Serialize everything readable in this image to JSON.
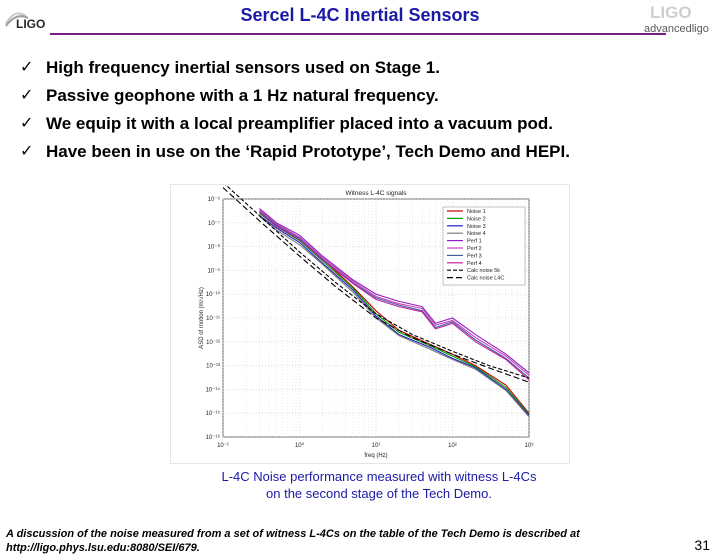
{
  "slide": {
    "title": "Sercel L-4C Inertial Sensors",
    "logo_left_text": "LIGO",
    "logo_right_text_top": "LIGO",
    "logo_right_text_bottom": "advancedligo",
    "bullets": [
      "High frequency inertial sensors used on Stage 1.",
      "Passive geophone with a 1 Hz natural frequency.",
      "We equip it with a local preamplifier placed into a vacuum pod.",
      "Have been in use on the ‘Rapid Prototype’, Tech Demo and HEPI."
    ],
    "bullet_mark": "✓",
    "caption_line1": "L-4C Noise performance measured with witness L-4Cs",
    "caption_line2": "on the second stage of the Tech Demo.",
    "footnote_line1": "A discussion of the noise measured from a set of witness L-4Cs on the table of the Tech Demo is described at",
    "footnote_line2": "http://ligo.phys.lsu.edu:8080/SEI/679.",
    "page_number": "31"
  },
  "chart_data": {
    "type": "line",
    "title": "Witness L-4C signals",
    "xlabel": "freq (Hz)",
    "ylabel": "ASD of motion (m/√Hz)",
    "x_scale": "log",
    "y_scale": "log",
    "xlim": [
      0.1,
      1000
    ],
    "ylim": [
      1e-16,
      1e-06
    ],
    "x_ticks": [
      "10⁻¹",
      "10⁰",
      "10¹",
      "10²",
      "10³"
    ],
    "y_ticks": [
      "10⁻⁶",
      "10⁻⁷",
      "10⁻⁸",
      "10⁻⁹",
      "10⁻¹⁰",
      "10⁻¹¹",
      "10⁻¹²",
      "10⁻¹³",
      "10⁻¹⁴",
      "10⁻¹⁵",
      "10⁻¹⁶"
    ],
    "grid": true,
    "legend_position": "top-right",
    "series": [
      {
        "name": "Noise 1",
        "color": "#c00000",
        "x": [
          0.3,
          0.5,
          1,
          2,
          5,
          10,
          20,
          50,
          100,
          200,
          500,
          1000
        ],
        "y": [
          3e-07,
          8e-08,
          2e-08,
          3e-09,
          2e-10,
          2e-11,
          3e-12,
          8e-13,
          3e-13,
          1e-13,
          1.5e-14,
          1e-15
        ]
      },
      {
        "name": "Noise 2",
        "color": "#00a000",
        "x": [
          0.3,
          0.5,
          1,
          2,
          5,
          10,
          20,
          50,
          100,
          200,
          500,
          1000
        ],
        "y": [
          2.5e-07,
          7e-08,
          1.8e-08,
          2.5e-09,
          1.8e-10,
          1.5e-11,
          2.5e-12,
          7e-13,
          2.5e-13,
          9e-14,
          1.2e-14,
          9e-16
        ]
      },
      {
        "name": "Noise 3",
        "color": "#2020c0",
        "x": [
          0.3,
          0.5,
          1,
          2,
          5,
          10,
          20,
          50,
          100,
          200,
          500,
          1000
        ],
        "y": [
          2e-07,
          6e-08,
          1.5e-08,
          2e-09,
          1.5e-10,
          1.2e-11,
          2e-12,
          6e-13,
          2e-13,
          8e-14,
          1e-14,
          8e-16
        ]
      },
      {
        "name": "Noise 4",
        "color": "#808080",
        "x": [
          0.3,
          0.5,
          1,
          2,
          5,
          10,
          20,
          50,
          100,
          200,
          500,
          1000
        ],
        "y": [
          1.8e-07,
          5e-08,
          1.2e-08,
          1.8e-09,
          1.2e-10,
          1e-11,
          1.8e-12,
          5e-13,
          1.8e-13,
          7e-14,
          9e-15,
          7e-16
        ]
      },
      {
        "name": "Perf 1",
        "color": "#9020c0",
        "x": [
          0.3,
          0.5,
          1,
          2,
          5,
          10,
          20,
          40,
          60,
          100,
          200,
          500,
          1000
        ],
        "y": [
          4e-07,
          1e-07,
          3e-08,
          4e-09,
          4e-10,
          1e-10,
          5e-11,
          3e-11,
          6e-12,
          1e-11,
          2e-12,
          3e-13,
          5e-14
        ]
      },
      {
        "name": "Perf 2",
        "color": "#d040c0",
        "x": [
          0.3,
          0.5,
          1,
          2,
          5,
          10,
          20,
          40,
          60,
          100,
          200,
          500,
          1000
        ],
        "y": [
          3.5e-07,
          9e-08,
          2.5e-08,
          3.5e-09,
          3.5e-10,
          8e-11,
          4e-11,
          2.5e-11,
          5e-12,
          8e-12,
          1.5e-12,
          2.5e-13,
          4e-14
        ]
      },
      {
        "name": "Perf 3",
        "color": "#4060a0",
        "x": [
          0.3,
          0.5,
          1,
          2,
          5,
          10,
          20,
          40,
          60,
          100,
          200,
          500,
          1000
        ],
        "y": [
          3e-07,
          8e-08,
          2.2e-08,
          3e-09,
          3e-10,
          7e-11,
          3.5e-11,
          2e-11,
          4e-12,
          7e-12,
          1.2e-12,
          2e-13,
          3e-14
        ]
      },
      {
        "name": "Perf 4",
        "color": "#c020a0",
        "x": [
          0.3,
          0.5,
          1,
          2,
          5,
          10,
          20,
          40,
          60,
          100,
          200,
          500,
          1000
        ],
        "y": [
          2.8e-07,
          7e-08,
          2e-08,
          2.8e-09,
          2.8e-10,
          6e-11,
          3e-11,
          1.8e-11,
          3.5e-12,
          6e-12,
          1e-12,
          1.8e-13,
          2.5e-14
        ]
      },
      {
        "name": "Calc noise 5k",
        "color": "#000000",
        "dash": "4,2",
        "x": [
          0.1,
          0.3,
          1,
          3,
          10,
          30,
          100,
          300,
          1000
        ],
        "y": [
          5e-06,
          2e-07,
          6e-09,
          3e-10,
          1.5e-11,
          2e-12,
          4e-13,
          1e-13,
          3e-14
        ]
      },
      {
        "name": "Calc noise L4C",
        "color": "#000000",
        "dash": "6,3",
        "x": [
          0.1,
          0.3,
          1,
          3,
          10,
          30,
          100,
          300,
          1000
        ],
        "y": [
          3e-06,
          1.2e-07,
          4e-09,
          2e-10,
          1e-11,
          1.5e-12,
          3e-13,
          8e-14,
          2e-14
        ]
      }
    ]
  }
}
